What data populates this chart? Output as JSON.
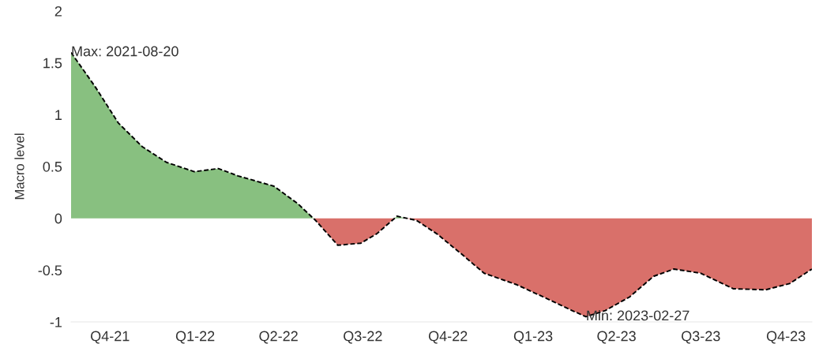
{
  "chart_data": {
    "type": "area",
    "ylabel": "Macro level",
    "x": [
      "2021-08-20",
      "2021-09-15",
      "2021-10-10",
      "2021-11-05",
      "2021-12-01",
      "2021-12-31",
      "2022-01-26",
      "2022-02-16",
      "2022-03-27",
      "2022-04-22",
      "2022-05-11",
      "2022-06-04",
      "2022-06-29",
      "2022-07-16",
      "2022-08-07",
      "2022-08-28",
      "2022-09-19",
      "2022-10-15",
      "2022-11-09",
      "2022-12-14",
      "2023-01-17",
      "2023-02-12",
      "2023-02-27",
      "2023-03-20",
      "2023-04-15",
      "2023-05-11",
      "2023-06-02",
      "2023-07-01",
      "2023-08-05",
      "2023-09-09",
      "2023-10-05",
      "2023-10-29"
    ],
    "series": [
      {
        "color": "#88c080",
        "x": [
          "2021-08-20",
          "2021-09-15",
          "2021-10-10",
          "2021-11-05",
          "2021-12-01",
          "2021-12-31",
          "2022-01-26",
          "2022-02-16",
          "2022-03-27",
          "2022-04-22",
          "2022-05-09",
          "2022-06-20",
          "2022-08-04",
          "2022-08-07",
          "2022-08-17"
        ],
        "values": [
          1.6,
          1.27,
          0.92,
          0.69,
          0.54,
          0.45,
          0.48,
          0.41,
          0.31,
          0.14,
          0,
          null,
          0,
          0.02,
          0
        ]
      },
      {
        "color": "#d9706a",
        "x": [
          "2022-05-09",
          "2022-05-11",
          "2022-06-04",
          "2022-06-29",
          "2022-07-16",
          "2022-08-04",
          "2022-08-07",
          "2022-08-17",
          "2022-08-28",
          "2022-09-19",
          "2022-10-15",
          "2022-11-09",
          "2022-12-14",
          "2023-01-17",
          "2023-02-12",
          "2023-02-27",
          "2023-03-20",
          "2023-04-15",
          "2023-05-11",
          "2023-06-02",
          "2023-07-01",
          "2023-08-05",
          "2023-09-09",
          "2023-10-05",
          "2023-10-29"
        ],
        "values": [
          0,
          -0.02,
          -0.26,
          -0.24,
          -0.15,
          0,
          null,
          0,
          -0.02,
          -0.15,
          -0.34,
          -0.53,
          -0.64,
          -0.78,
          -0.89,
          -0.95,
          -0.89,
          -0.76,
          -0.56,
          -0.49,
          -0.53,
          -0.68,
          -0.69,
          -0.63,
          -0.49
        ]
      },
      {
        "type": "line",
        "color": "#000000",
        "line_style": "dashed",
        "values": [
          1.6,
          1.27,
          0.92,
          0.69,
          0.54,
          0.45,
          0.48,
          0.41,
          0.31,
          0.14,
          -0.02,
          -0.26,
          -0.24,
          -0.15,
          0.02,
          -0.02,
          -0.15,
          -0.34,
          -0.53,
          -0.64,
          -0.78,
          -0.89,
          -0.95,
          -0.89,
          -0.76,
          -0.56,
          -0.49,
          -0.53,
          -0.68,
          -0.69,
          -0.63,
          -0.49
        ]
      }
    ],
    "marker": "none",
    "grid": false,
    "legend": false,
    "xlim": [
      "2021-08-20",
      "2023-10-29"
    ],
    "xticks": [
      {
        "value": "2021-10-01",
        "label": "Q4-21"
      },
      {
        "value": "2022-01-01",
        "label": "Q1-22"
      },
      {
        "value": "2022-04-01",
        "label": "Q2-22"
      },
      {
        "value": "2022-07-01",
        "label": "Q3-22"
      },
      {
        "value": "2022-10-01",
        "label": "Q4-22"
      },
      {
        "value": "2023-01-01",
        "label": "Q1-23"
      },
      {
        "value": "2023-04-01",
        "label": "Q2-23"
      },
      {
        "value": "2023-07-01",
        "label": "Q3-23"
      },
      {
        "value": "2023-10-01",
        "label": "Q4-23"
      }
    ],
    "ylim": [
      -1,
      2
    ],
    "yticks": [
      -1,
      -0.5,
      0,
      0.5,
      1,
      1.5,
      2
    ],
    "annotations": [
      {
        "text": "Max: 2021-08-20",
        "x": "2021-08-20",
        "y": 1.6
      },
      {
        "text": "Min: 2023-02-27",
        "x": "2023-02-27",
        "y": -0.95
      }
    ]
  }
}
